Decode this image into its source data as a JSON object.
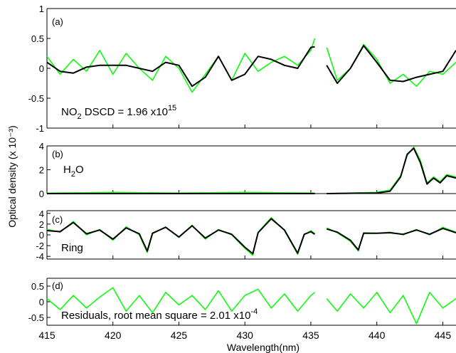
{
  "figure": {
    "y_axis_label": "Optical density (x 10⁻³)",
    "x_axis_label": "Wavelength(nm)",
    "x_tick_labels": [
      "415",
      "420",
      "425",
      "430",
      "435",
      "440",
      "445"
    ]
  },
  "colors": {
    "measured": "#00ff00",
    "fit": "#000000",
    "axes": "#000000"
  },
  "chart_data": [
    {
      "type": "line",
      "panel": "(a)",
      "annotation": {
        "text": "NO",
        "sub": "2",
        "rest": " DSCD = 1.96 x10",
        "sup": "15"
      },
      "xlim": [
        415,
        446
      ],
      "ylim": [
        -1,
        1
      ],
      "yticks": [
        -1,
        -0.5,
        0,
        0.5,
        1
      ],
      "ytick_labels": [
        "-1",
        "-0.5",
        "0",
        "0.5",
        "1"
      ],
      "gap": [
        435.3,
        436.2
      ],
      "series": [
        {
          "role": "measured",
          "x": [
            415,
            416,
            417,
            418,
            419,
            420,
            421,
            422,
            423,
            424,
            425,
            426,
            427,
            428,
            429,
            430,
            431,
            432,
            433,
            434,
            435,
            435.3,
            436.2,
            437,
            438,
            439,
            440,
            441,
            442,
            443,
            444,
            445,
            446
          ],
          "values": [
            0.2,
            -0.1,
            0.15,
            -0.05,
            0.3,
            -0.1,
            0.25,
            0.0,
            -0.2,
            0.2,
            0.0,
            -0.4,
            -0.1,
            0.2,
            -0.2,
            0.25,
            -0.05,
            0.1,
            0.2,
            0.05,
            0.3,
            0.5,
            0.35,
            -0.2,
            0.0,
            0.4,
            0.15,
            -0.25,
            -0.1,
            -0.3,
            -0.05,
            -0.1,
            0.1
          ]
        },
        {
          "role": "fit",
          "x": [
            415,
            416,
            417,
            418,
            419,
            420,
            421,
            422,
            423,
            424,
            425,
            426,
            427,
            428,
            429,
            430,
            431,
            432,
            433,
            434,
            435,
            435.3,
            436.2,
            437,
            438,
            439,
            440,
            441,
            442,
            443,
            444,
            445,
            446
          ],
          "values": [
            0.1,
            -0.05,
            -0.08,
            0.02,
            0.05,
            0.05,
            0.05,
            0.0,
            -0.05,
            0.1,
            0.05,
            -0.3,
            -0.15,
            0.2,
            -0.2,
            -0.1,
            0.2,
            0.15,
            0.05,
            0.0,
            0.35,
            0.36,
            0.05,
            -0.25,
            0.0,
            0.38,
            0.1,
            -0.2,
            -0.22,
            -0.15,
            -0.1,
            -0.05,
            0.3
          ]
        }
      ]
    },
    {
      "type": "line",
      "panel": "(b)",
      "annotation": {
        "text": "H",
        "sub": "2",
        "rest": "O",
        "sup": ""
      },
      "xlim": [
        415,
        446
      ],
      "ylim": [
        0,
        4
      ],
      "yticks": [
        0,
        2,
        4
      ],
      "ytick_labels": [
        "0",
        "2",
        "4"
      ],
      "gap": [
        435.3,
        436.2
      ],
      "series": [
        {
          "role": "measured",
          "x": [
            415,
            420,
            425,
            430,
            435.3,
            436.2,
            440,
            441,
            441.8,
            442.3,
            442.8,
            443.3,
            443.8,
            444.3,
            444.8,
            445.3,
            446
          ],
          "values": [
            0.05,
            0.1,
            0.05,
            0.1,
            0.05,
            0.0,
            0.1,
            0.3,
            1.5,
            3.2,
            3.9,
            2.8,
            0.9,
            1.4,
            1.0,
            1.6,
            1.4
          ]
        },
        {
          "role": "fit",
          "x": [
            415,
            420,
            425,
            430,
            435.3,
            436.2,
            440,
            441,
            441.8,
            442.3,
            442.8,
            443.3,
            443.8,
            444.3,
            444.8,
            445.3,
            446
          ],
          "values": [
            0.0,
            0.0,
            0.0,
            0.0,
            0.0,
            0.0,
            0.05,
            0.2,
            1.4,
            3.3,
            3.8,
            2.6,
            0.8,
            1.3,
            0.9,
            1.5,
            1.3
          ]
        }
      ]
    },
    {
      "type": "line",
      "panel": "(c)",
      "annotation": {
        "text": "Ring",
        "sub": "",
        "rest": "",
        "sup": ""
      },
      "xlim": [
        415,
        446
      ],
      "ylim": [
        -4.5,
        4.5
      ],
      "yticks": [
        -4,
        -2,
        0,
        2,
        4
      ],
      "ytick_labels": [
        "-4",
        "-2",
        "0",
        "2",
        "4"
      ],
      "gap": [
        435.3,
        436.2
      ],
      "series": [
        {
          "role": "measured",
          "x": [
            415,
            416,
            417,
            418,
            419,
            420,
            421,
            422,
            422.6,
            423,
            424,
            425,
            426,
            427,
            428,
            429,
            430,
            430.6,
            431,
            432,
            433,
            434,
            434.5,
            435,
            435.3,
            436.2,
            437,
            438,
            438.6,
            439,
            440,
            441,
            442,
            443,
            444,
            445,
            446
          ],
          "values": [
            1.0,
            0.5,
            2.5,
            0.0,
            1.0,
            -1.0,
            1.5,
            0.0,
            -3.3,
            0.2,
            1.5,
            -0.5,
            1.8,
            -0.8,
            1.0,
            0.0,
            -2.5,
            -3.8,
            0.5,
            3.2,
            0.8,
            -3.6,
            0.0,
            0.8,
            0.2,
            1.3,
            0.4,
            -1.2,
            -3.0,
            0.4,
            0.3,
            0.5,
            0.0,
            1.0,
            0.0,
            1.4,
            0.5
          ]
        },
        {
          "role": "fit",
          "x": [
            415,
            416,
            417,
            418,
            419,
            420,
            421,
            422,
            422.6,
            423,
            424,
            425,
            426,
            427,
            428,
            429,
            430,
            430.6,
            431,
            432,
            433,
            434,
            434.5,
            435,
            435.3,
            436.2,
            437,
            438,
            438.6,
            439,
            440,
            441,
            442,
            443,
            444,
            445,
            446
          ],
          "values": [
            0.8,
            0.6,
            2.3,
            0.2,
            0.9,
            -0.8,
            1.3,
            0.2,
            -3.0,
            0.3,
            1.4,
            -0.4,
            1.7,
            -0.6,
            0.9,
            0.1,
            -2.3,
            -3.5,
            0.4,
            3.0,
            0.9,
            -3.4,
            0.1,
            0.6,
            0.1,
            1.1,
            0.5,
            -1.0,
            -2.8,
            0.3,
            0.3,
            0.4,
            0.1,
            0.9,
            0.1,
            1.2,
            0.4
          ]
        }
      ]
    },
    {
      "type": "line",
      "panel": "(d)",
      "annotation": {
        "text": "Residuals, root mean square = 2.01 x10",
        "sub": "",
        "rest": "",
        "sup": "-4"
      },
      "xlim": [
        415,
        446
      ],
      "ylim": [
        -0.75,
        0.75
      ],
      "yticks": [
        -0.5,
        0,
        0.5
      ],
      "ytick_labels": [
        "-0.5",
        "0",
        "0.5"
      ],
      "gap": [
        435.3,
        436.2
      ],
      "series": [
        {
          "role": "measured",
          "x": [
            415,
            416,
            417,
            418,
            419,
            420,
            421,
            422,
            423,
            424,
            425,
            426,
            427,
            428,
            429,
            430,
            431,
            432,
            433,
            434,
            435,
            435.3,
            436.2,
            437,
            438,
            439,
            440,
            441,
            442,
            443,
            444,
            445,
            446
          ],
          "values": [
            0.1,
            -0.25,
            0.2,
            -0.2,
            0.15,
            0.45,
            -0.3,
            0.2,
            -0.35,
            0.3,
            -0.1,
            0.2,
            -0.25,
            0.35,
            -0.3,
            0.2,
            0.4,
            -0.2,
            0.25,
            -0.3,
            0.2,
            0.3,
            0.1,
            -0.3,
            0.25,
            -0.2,
            0.3,
            -0.35,
            0.2,
            -0.7,
            0.3,
            -0.2,
            0.1
          ]
        }
      ]
    }
  ]
}
